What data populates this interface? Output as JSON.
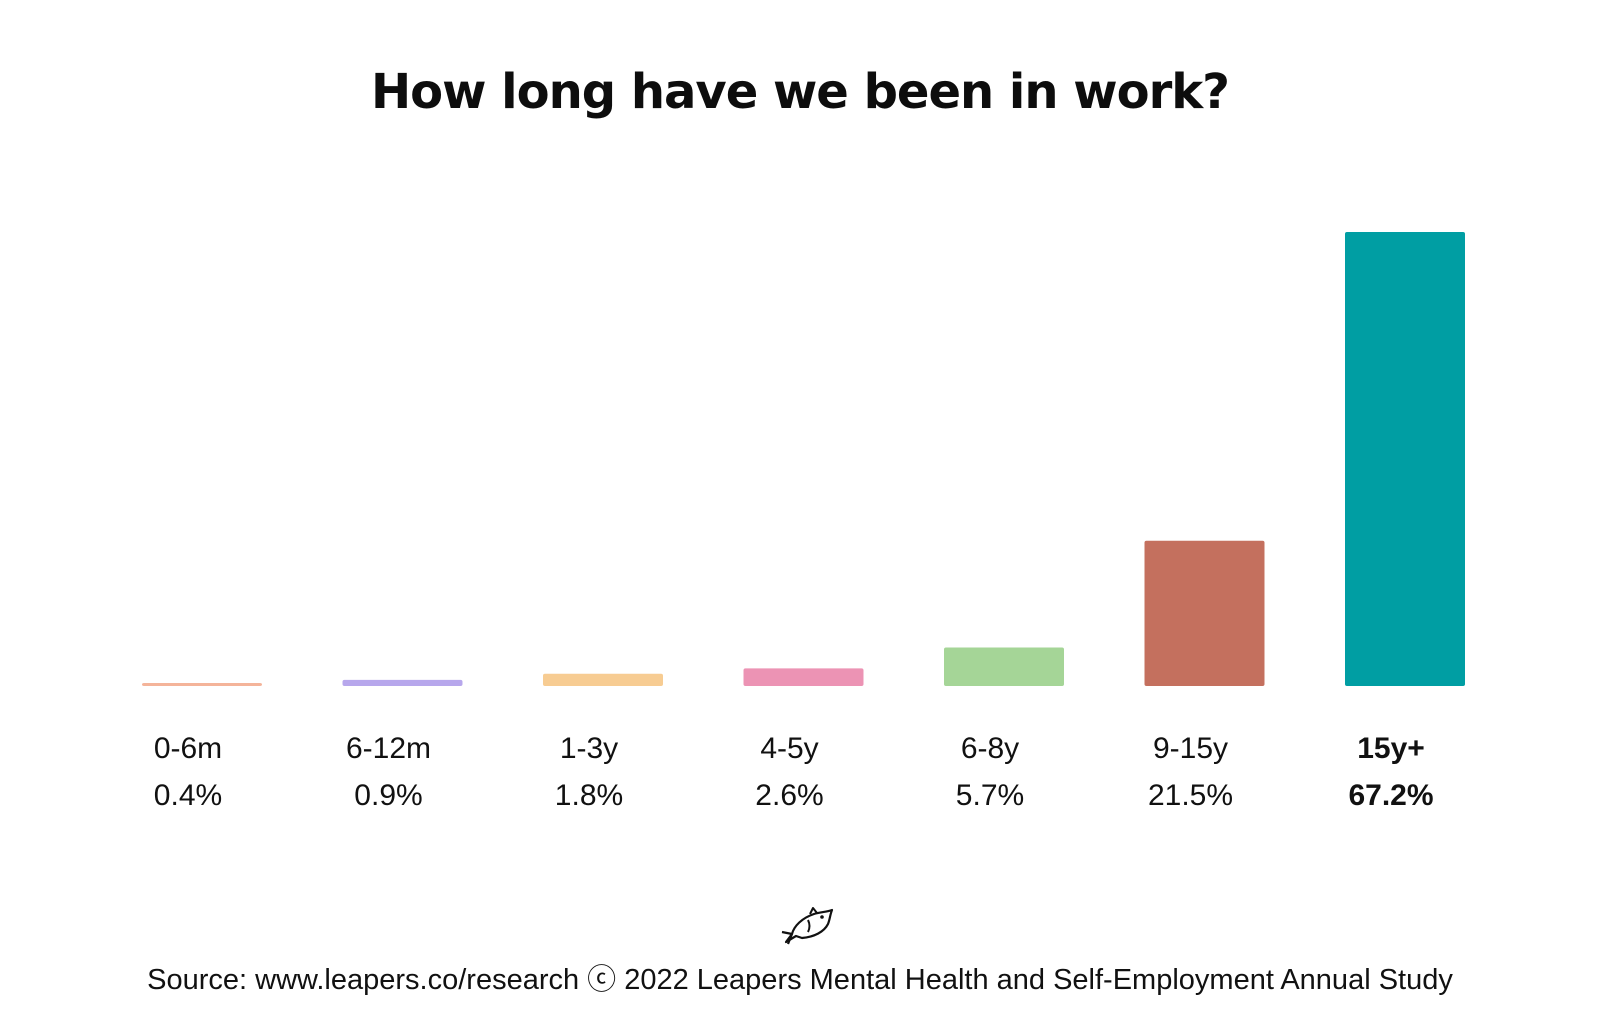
{
  "chart_data": {
    "type": "bar",
    "title": "How long have we been in work?",
    "categories": [
      "0-6m",
      "6-12m",
      "1-3y",
      "4-5y",
      "6-8y",
      "9-15y",
      "15y+"
    ],
    "values": [
      0.4,
      0.9,
      1.8,
      2.6,
      5.7,
      21.5,
      67.2
    ],
    "value_labels": [
      "0.4%",
      "0.9%",
      "1.8%",
      "2.6%",
      "5.7%",
      "21.5%",
      "67.2%"
    ],
    "colors": [
      "#f4b49a",
      "#b7a7ec",
      "#f7cc92",
      "#ec93b4",
      "#a5d597",
      "#c4705e",
      "#009ea3"
    ],
    "highlighted_category": "15y+",
    "xlabel": "",
    "ylabel": "",
    "ylim": [
      0,
      67.2
    ],
    "grid": false,
    "legend": "none"
  },
  "footer": {
    "logo_icon": "leaping-fish-icon",
    "source": "Source: www.leapers.co/research ⓒ 2022 Leapers Mental Health and Self-Employment Annual Study"
  }
}
